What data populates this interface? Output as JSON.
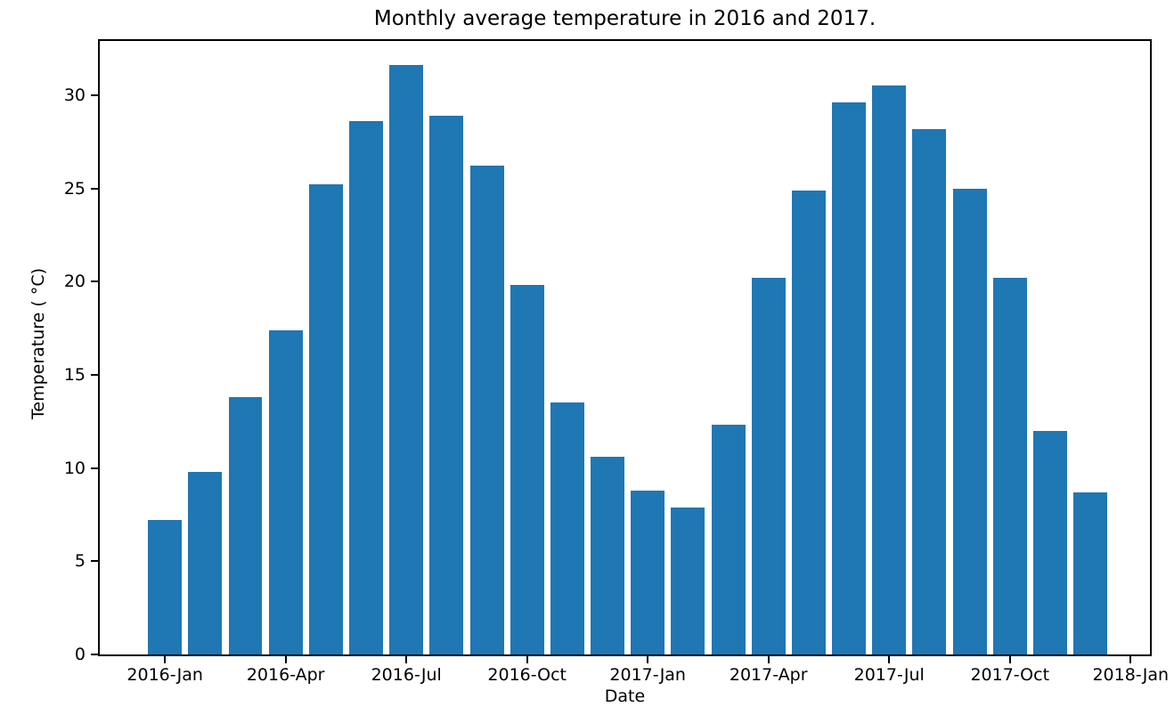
{
  "chart_data": {
    "type": "bar",
    "title": "Monthly average temperature in 2016 and 2017.",
    "xlabel": "Date",
    "ylabel": "Temperature ( °C)",
    "bar_color": "#1f77b4",
    "text_color": "#000000",
    "grid": false,
    "legend": null,
    "categories": [
      "2016-Jan",
      "2016-Feb",
      "2016-Mar",
      "2016-Apr",
      "2016-May",
      "2016-Jun",
      "2016-Jul",
      "2016-Aug",
      "2016-Sep",
      "2016-Oct",
      "2016-Nov",
      "2016-Dec",
      "2017-Jan",
      "2017-Feb",
      "2017-Mar",
      "2017-Apr",
      "2017-May",
      "2017-Jun",
      "2017-Jul",
      "2017-Aug",
      "2017-Sep",
      "2017-Oct",
      "2017-Nov",
      "2017-Dec"
    ],
    "values": [
      7.2,
      9.8,
      13.8,
      17.4,
      25.2,
      28.6,
      31.6,
      28.9,
      26.2,
      19.8,
      13.5,
      10.6,
      8.8,
      7.9,
      12.3,
      20.2,
      24.9,
      29.6,
      30.5,
      28.2,
      25.0,
      20.2,
      12.0,
      8.7
    ],
    "ylim": [
      0,
      33.1
    ],
    "yticks": [
      0,
      5,
      10,
      15,
      20,
      25,
      30
    ],
    "xlim_months": [
      -1.62,
      24.57
    ],
    "bar_width_months": 0.84,
    "xticks": [
      {
        "month": 0,
        "label": "2016-Jan"
      },
      {
        "month": 3,
        "label": "2016-Apr"
      },
      {
        "month": 6,
        "label": "2016-Jul"
      },
      {
        "month": 9,
        "label": "2016-Oct"
      },
      {
        "month": 12,
        "label": "2017-Jan"
      },
      {
        "month": 15,
        "label": "2017-Apr"
      },
      {
        "month": 18,
        "label": "2017-Jul"
      },
      {
        "month": 21,
        "label": "2017-Oct"
      },
      {
        "month": 24,
        "label": "2018-Jan"
      }
    ]
  }
}
